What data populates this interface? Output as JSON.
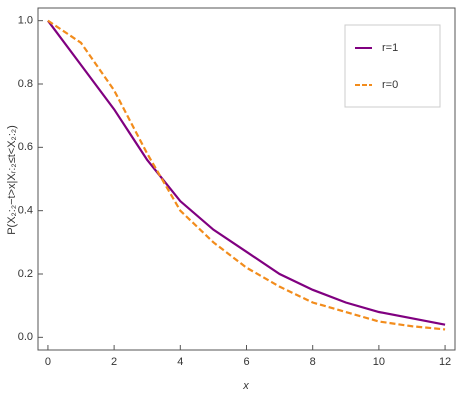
{
  "chart_data": {
    "type": "line",
    "xlabel": "x",
    "ylabel": "P(X₂:₂−t>x|Xᵣ:₂≤t<X₂:₂)",
    "x": [
      0,
      1,
      2,
      3,
      4,
      5,
      6,
      7,
      8,
      9,
      10,
      11,
      12
    ],
    "series": [
      {
        "name": "r=1",
        "color": "#800080",
        "dashed": false,
        "values": [
          1.0,
          0.86,
          0.72,
          0.56,
          0.43,
          0.34,
          0.27,
          0.2,
          0.15,
          0.11,
          0.08,
          0.06,
          0.04
        ]
      },
      {
        "name": "r=0",
        "color": "#f28c1c",
        "dashed": true,
        "values": [
          1.0,
          0.93,
          0.78,
          0.58,
          0.4,
          0.3,
          0.22,
          0.16,
          0.11,
          0.08,
          0.05,
          0.035,
          0.025
        ]
      }
    ],
    "xlim": [
      -0.3,
      12.3
    ],
    "ylim": [
      -0.04,
      1.04
    ],
    "xticks": [
      0,
      2,
      4,
      6,
      8,
      10,
      12
    ],
    "yticks": [
      {
        "value": 0,
        "label": "0.0"
      },
      0.2,
      0.4,
      0.6,
      0.8,
      {
        "value": 1,
        "label": "1.0"
      }
    ],
    "legend": "top-right"
  }
}
